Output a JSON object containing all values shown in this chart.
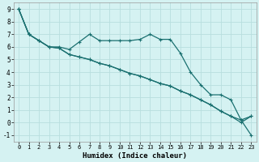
{
  "xlabel": "Humidex (Indice chaleur)",
  "background_color": "#d5f2f2",
  "grid_color": "#b8dede",
  "line_color": "#1a7070",
  "xlim": [
    -0.5,
    23.5
  ],
  "ylim": [
    -1.5,
    9.5
  ],
  "xticks": [
    0,
    1,
    2,
    3,
    4,
    5,
    6,
    7,
    8,
    9,
    10,
    11,
    12,
    13,
    14,
    15,
    16,
    17,
    18,
    19,
    20,
    21,
    22,
    23
  ],
  "yticks": [
    -1,
    0,
    1,
    2,
    3,
    4,
    5,
    6,
    7,
    8,
    9
  ],
  "series1_x": [
    0,
    1,
    2,
    3,
    4,
    5,
    6,
    7,
    8,
    9,
    10,
    11,
    12,
    13,
    14,
    15,
    16,
    17,
    18,
    19,
    20,
    21,
    22,
    23
  ],
  "series1_y": [
    9.0,
    7.0,
    6.5,
    6.0,
    6.0,
    5.8,
    6.4,
    7.0,
    6.5,
    6.5,
    6.5,
    6.5,
    6.6,
    7.0,
    6.6,
    6.6,
    5.5,
    4.0,
    3.0,
    2.2,
    2.2,
    1.8,
    0.2,
    0.5
  ],
  "series2_x": [
    0,
    1,
    2,
    3,
    4,
    5,
    6,
    7,
    8,
    9,
    10,
    11,
    12,
    13,
    14,
    15,
    16,
    17,
    18,
    19,
    20,
    21,
    22,
    23
  ],
  "series2_y": [
    9.0,
    7.0,
    6.5,
    6.0,
    5.9,
    5.4,
    5.2,
    5.0,
    4.7,
    4.5,
    4.2,
    3.9,
    3.7,
    3.4,
    3.1,
    2.9,
    2.5,
    2.2,
    1.8,
    1.4,
    0.9,
    0.5,
    0.0,
    0.5
  ],
  "series3_x": [
    0,
    1,
    2,
    3,
    4,
    5,
    6,
    7,
    8,
    9,
    10,
    11,
    12,
    13,
    14,
    15,
    16,
    17,
    18,
    19,
    20,
    21,
    22,
    23
  ],
  "series3_y": [
    9.0,
    7.0,
    6.5,
    6.0,
    5.9,
    5.4,
    5.2,
    5.0,
    4.7,
    4.5,
    4.2,
    3.9,
    3.7,
    3.4,
    3.1,
    2.9,
    2.5,
    2.2,
    1.8,
    1.4,
    0.9,
    0.5,
    0.2,
    -1.0
  ]
}
